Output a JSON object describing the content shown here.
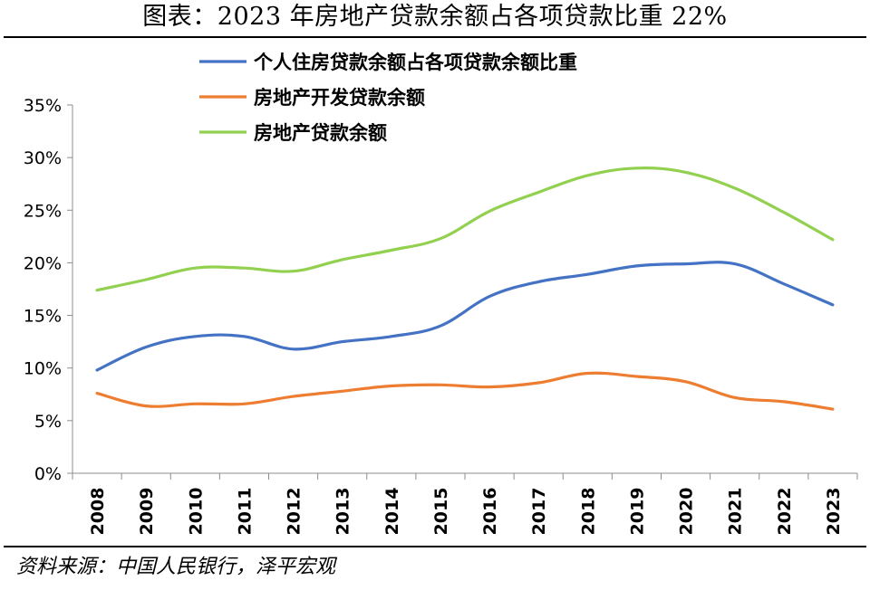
{
  "title": "图表：2023 年房地产贷款余额占各项贷款比重 22%",
  "source": "资料来源：中国人民银行，泽平宏观",
  "chart_data": {
    "type": "line",
    "title": "图表：2023 年房地产贷款余额占各项贷款比重 22%",
    "xlabel": "",
    "ylabel": "",
    "categories": [
      "2008",
      "2009",
      "2010",
      "2011",
      "2012",
      "2013",
      "2014",
      "2015",
      "2016",
      "2017",
      "2018",
      "2019",
      "2020",
      "2021",
      "2022",
      "2023"
    ],
    "ylim": [
      0,
      35
    ],
    "yticks": [
      "0%",
      "5%",
      "10%",
      "15%",
      "20%",
      "25%",
      "30%",
      "35%"
    ],
    "grid": false,
    "legend_position": "top",
    "series": [
      {
        "name": "个人住房贷款余额占各项贷款余额比重",
        "color": "#4472c4",
        "values": [
          9.8,
          12.0,
          13.0,
          13.0,
          11.8,
          12.5,
          13.0,
          14.0,
          16.8,
          18.2,
          18.9,
          19.7,
          19.9,
          19.9,
          18.0,
          16.0
        ]
      },
      {
        "name": "房地产开发贷款余额",
        "color": "#ed7d31",
        "values": [
          7.6,
          6.4,
          6.6,
          6.6,
          7.3,
          7.8,
          8.3,
          8.4,
          8.2,
          8.6,
          9.5,
          9.2,
          8.7,
          7.2,
          6.8,
          6.1
        ]
      },
      {
        "name": "房地产贷款余额",
        "color": "#92d050",
        "values": [
          17.4,
          18.4,
          19.5,
          19.5,
          19.2,
          20.3,
          21.2,
          22.3,
          24.9,
          26.7,
          28.3,
          29.0,
          28.6,
          27.1,
          24.8,
          22.2
        ]
      }
    ]
  }
}
